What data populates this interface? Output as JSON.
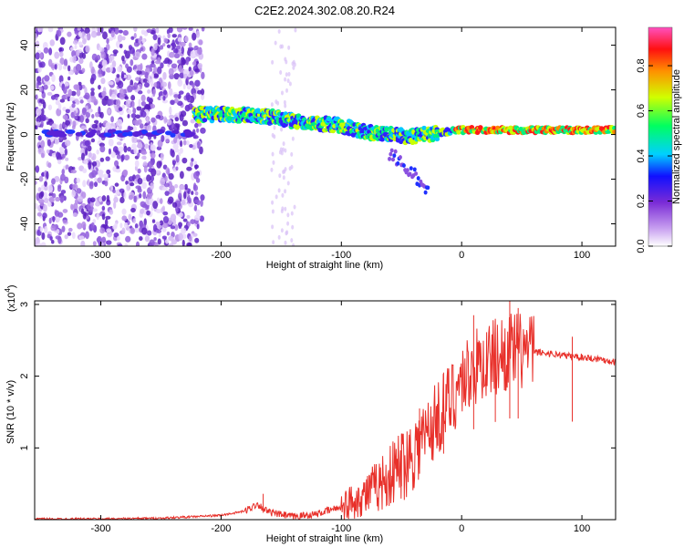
{
  "title": "C2E2.2024.302.08.20.R24",
  "chart_data": [
    {
      "type": "heatmap",
      "name": "spectrogram",
      "xlabel": "Height of straight line (km)",
      "ylabel": "Frequency (Hz)",
      "xlim": [
        -355,
        128
      ],
      "ylim": [
        -50,
        48
      ],
      "xticks": [
        -300,
        -200,
        -100,
        0,
        100
      ],
      "yticks": [
        -40,
        -20,
        0,
        20,
        40
      ],
      "colorbar": {
        "label": "Normalized spectral amplitude",
        "range": [
          0,
          0.97
        ],
        "ticks": [
          0.0,
          0.2,
          0.4,
          0.6,
          0.8
        ],
        "colors": [
          "#ffffff",
          "#c8a0f0",
          "#7a2bd6",
          "#1010ff",
          "#00d0ff",
          "#00ff60",
          "#d0ff00",
          "#ff9000",
          "#ff1010",
          "#ff50c0"
        ]
      },
      "ridge": [
        {
          "x": -222,
          "f": 9
        },
        {
          "x": -190,
          "f": 9
        },
        {
          "x": -160,
          "f": 8
        },
        {
          "x": -140,
          "f": 6
        },
        {
          "x": -120,
          "f": 5
        },
        {
          "x": -100,
          "f": 4
        },
        {
          "x": -80,
          "f": 1
        },
        {
          "x": -60,
          "f": 0
        },
        {
          "x": -45,
          "f": -1
        },
        {
          "x": -30,
          "f": 0
        },
        {
          "x": -15,
          "f": 1
        },
        {
          "x": 0,
          "f": 2
        },
        {
          "x": 50,
          "f": 2
        },
        {
          "x": 100,
          "f": 2
        },
        {
          "x": 128,
          "f": 2
        }
      ]
    },
    {
      "type": "line",
      "name": "snr",
      "xlabel": "Height of straight line (km)",
      "ylabel": "SNR (10 * v/v)",
      "yscale_label": "(x10",
      "yscale_exp": "4",
      "xlim": [
        -355,
        128
      ],
      "ylim": [
        0,
        3.05
      ],
      "xticks": [
        -300,
        -200,
        -100,
        0,
        100
      ],
      "yticks": [
        1,
        2,
        3
      ],
      "color": "#e8302a",
      "series": [
        {
          "x": -355,
          "y": 0.01
        },
        {
          "x": -300,
          "y": 0.01
        },
        {
          "x": -250,
          "y": 0.02
        },
        {
          "x": -200,
          "y": 0.06
        },
        {
          "x": -180,
          "y": 0.12
        },
        {
          "x": -170,
          "y": 0.22
        },
        {
          "x": -160,
          "y": 0.1
        },
        {
          "x": -140,
          "y": 0.04
        },
        {
          "x": -120,
          "y": 0.08
        },
        {
          "x": -100,
          "y": 0.18
        },
        {
          "x": -80,
          "y": 0.35
        },
        {
          "x": -60,
          "y": 0.6
        },
        {
          "x": -40,
          "y": 0.95
        },
        {
          "x": -25,
          "y": 1.3
        },
        {
          "x": -10,
          "y": 1.65
        },
        {
          "x": 0,
          "y": 1.95
        },
        {
          "x": 10,
          "y": 2.1
        },
        {
          "x": 25,
          "y": 2.25
        },
        {
          "x": 40,
          "y": 2.35
        },
        {
          "x": 55,
          "y": 2.35
        },
        {
          "x": 70,
          "y": 2.32
        },
        {
          "x": 90,
          "y": 2.28
        },
        {
          "x": 110,
          "y": 2.25
        },
        {
          "x": 128,
          "y": 2.2
        }
      ],
      "spikes": [
        {
          "x": -165,
          "y": 0.36
        },
        {
          "x": -50,
          "y": 1.2
        },
        {
          "x": -35,
          "y": 1.55
        },
        {
          "x": -15,
          "y": 2.05
        },
        {
          "x": 10,
          "y": 2.85
        },
        {
          "x": 28,
          "y": 2.8
        },
        {
          "x": 40,
          "y": 3.05
        },
        {
          "x": 47,
          "y": 2.95
        },
        {
          "x": 92,
          "y": 2.55
        }
      ]
    }
  ]
}
